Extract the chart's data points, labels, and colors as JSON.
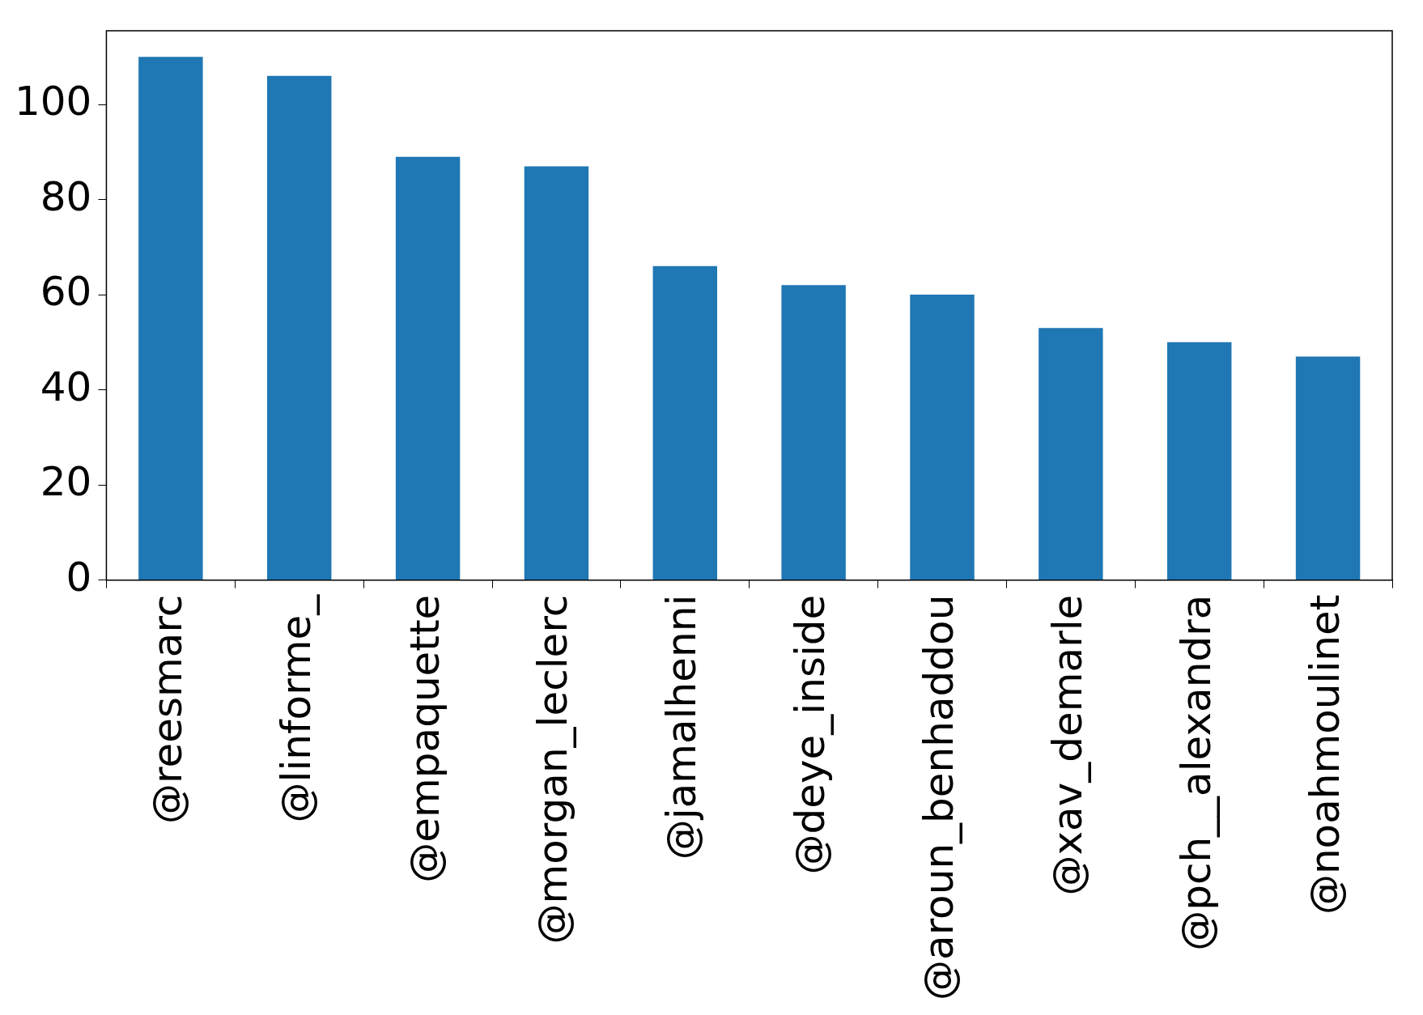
{
  "chart_data": {
    "type": "bar",
    "categories": [
      "@reesmarc",
      "@linforme_",
      "@empaquette",
      "@morgan_leclerc",
      "@jamalhenni",
      "@deye_inside",
      "@aroun_benhaddou",
      "@xav_demarle",
      "@pch__alexandra",
      "@noahmoulinet"
    ],
    "values": [
      110,
      106,
      89,
      87,
      66,
      62,
      60,
      53,
      50,
      47
    ],
    "color": "#1f77b4",
    "ylim": [
      0,
      115.5
    ],
    "yticks": [
      0,
      20,
      40,
      60,
      80,
      100
    ],
    "grid": false,
    "legend": false
  }
}
